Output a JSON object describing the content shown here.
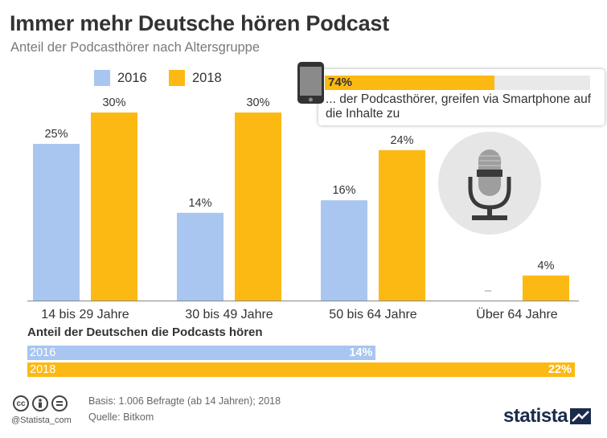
{
  "header": {
    "title": "Immer mehr Deutsche hören Podcast",
    "subtitle": "Anteil der Podcasthörer nach Altersgruppe"
  },
  "legend": [
    {
      "label": "2016",
      "color": "#a8c6ef"
    },
    {
      "label": "2018",
      "color": "#fdb913"
    }
  ],
  "chart_data": {
    "type": "bar",
    "categories": [
      "14 bis 29 Jahre",
      "30 bis 49 Jahre",
      "50 bis 64 Jahre",
      "Über 64 Jahre"
    ],
    "series": [
      {
        "name": "2016",
        "values": [
          25,
          14,
          16,
          null
        ],
        "labels": [
          "25%",
          "14%",
          "16%",
          "–"
        ],
        "color": "#a8c6ef"
      },
      {
        "name": "2018",
        "values": [
          30,
          30,
          24,
          4
        ],
        "labels": [
          "30%",
          "30%",
          "24%",
          "4%"
        ],
        "color": "#fdb913"
      }
    ],
    "ylim": [
      0,
      30
    ],
    "grid": false,
    "legend_position": "top-left"
  },
  "callout": {
    "value": 74,
    "value_label": "74%",
    "text": "... der Podcasthörer, greifen via Smartphone auf die Inhalte zu",
    "icon": "smartphone-icon"
  },
  "decor": {
    "icon": "microphone-icon"
  },
  "summary": {
    "title": "Anteil der Deutschen die Podcasts hören",
    "max": 22,
    "rows": [
      {
        "label": "2016",
        "value": 14,
        "value_label": "14%",
        "color": "#a8c6ef"
      },
      {
        "label": "2018",
        "value": 22,
        "value_label": "22%",
        "color": "#fdb913"
      }
    ]
  },
  "footer": {
    "handle": "@Statista_com",
    "basis": "Basis: 1.006 Befragte (ab 14 Jahren); 2018",
    "source": "Quelle: Bitkom",
    "brand": "statista",
    "license_icons": [
      "cc-icon",
      "by-icon",
      "nd-icon"
    ]
  }
}
